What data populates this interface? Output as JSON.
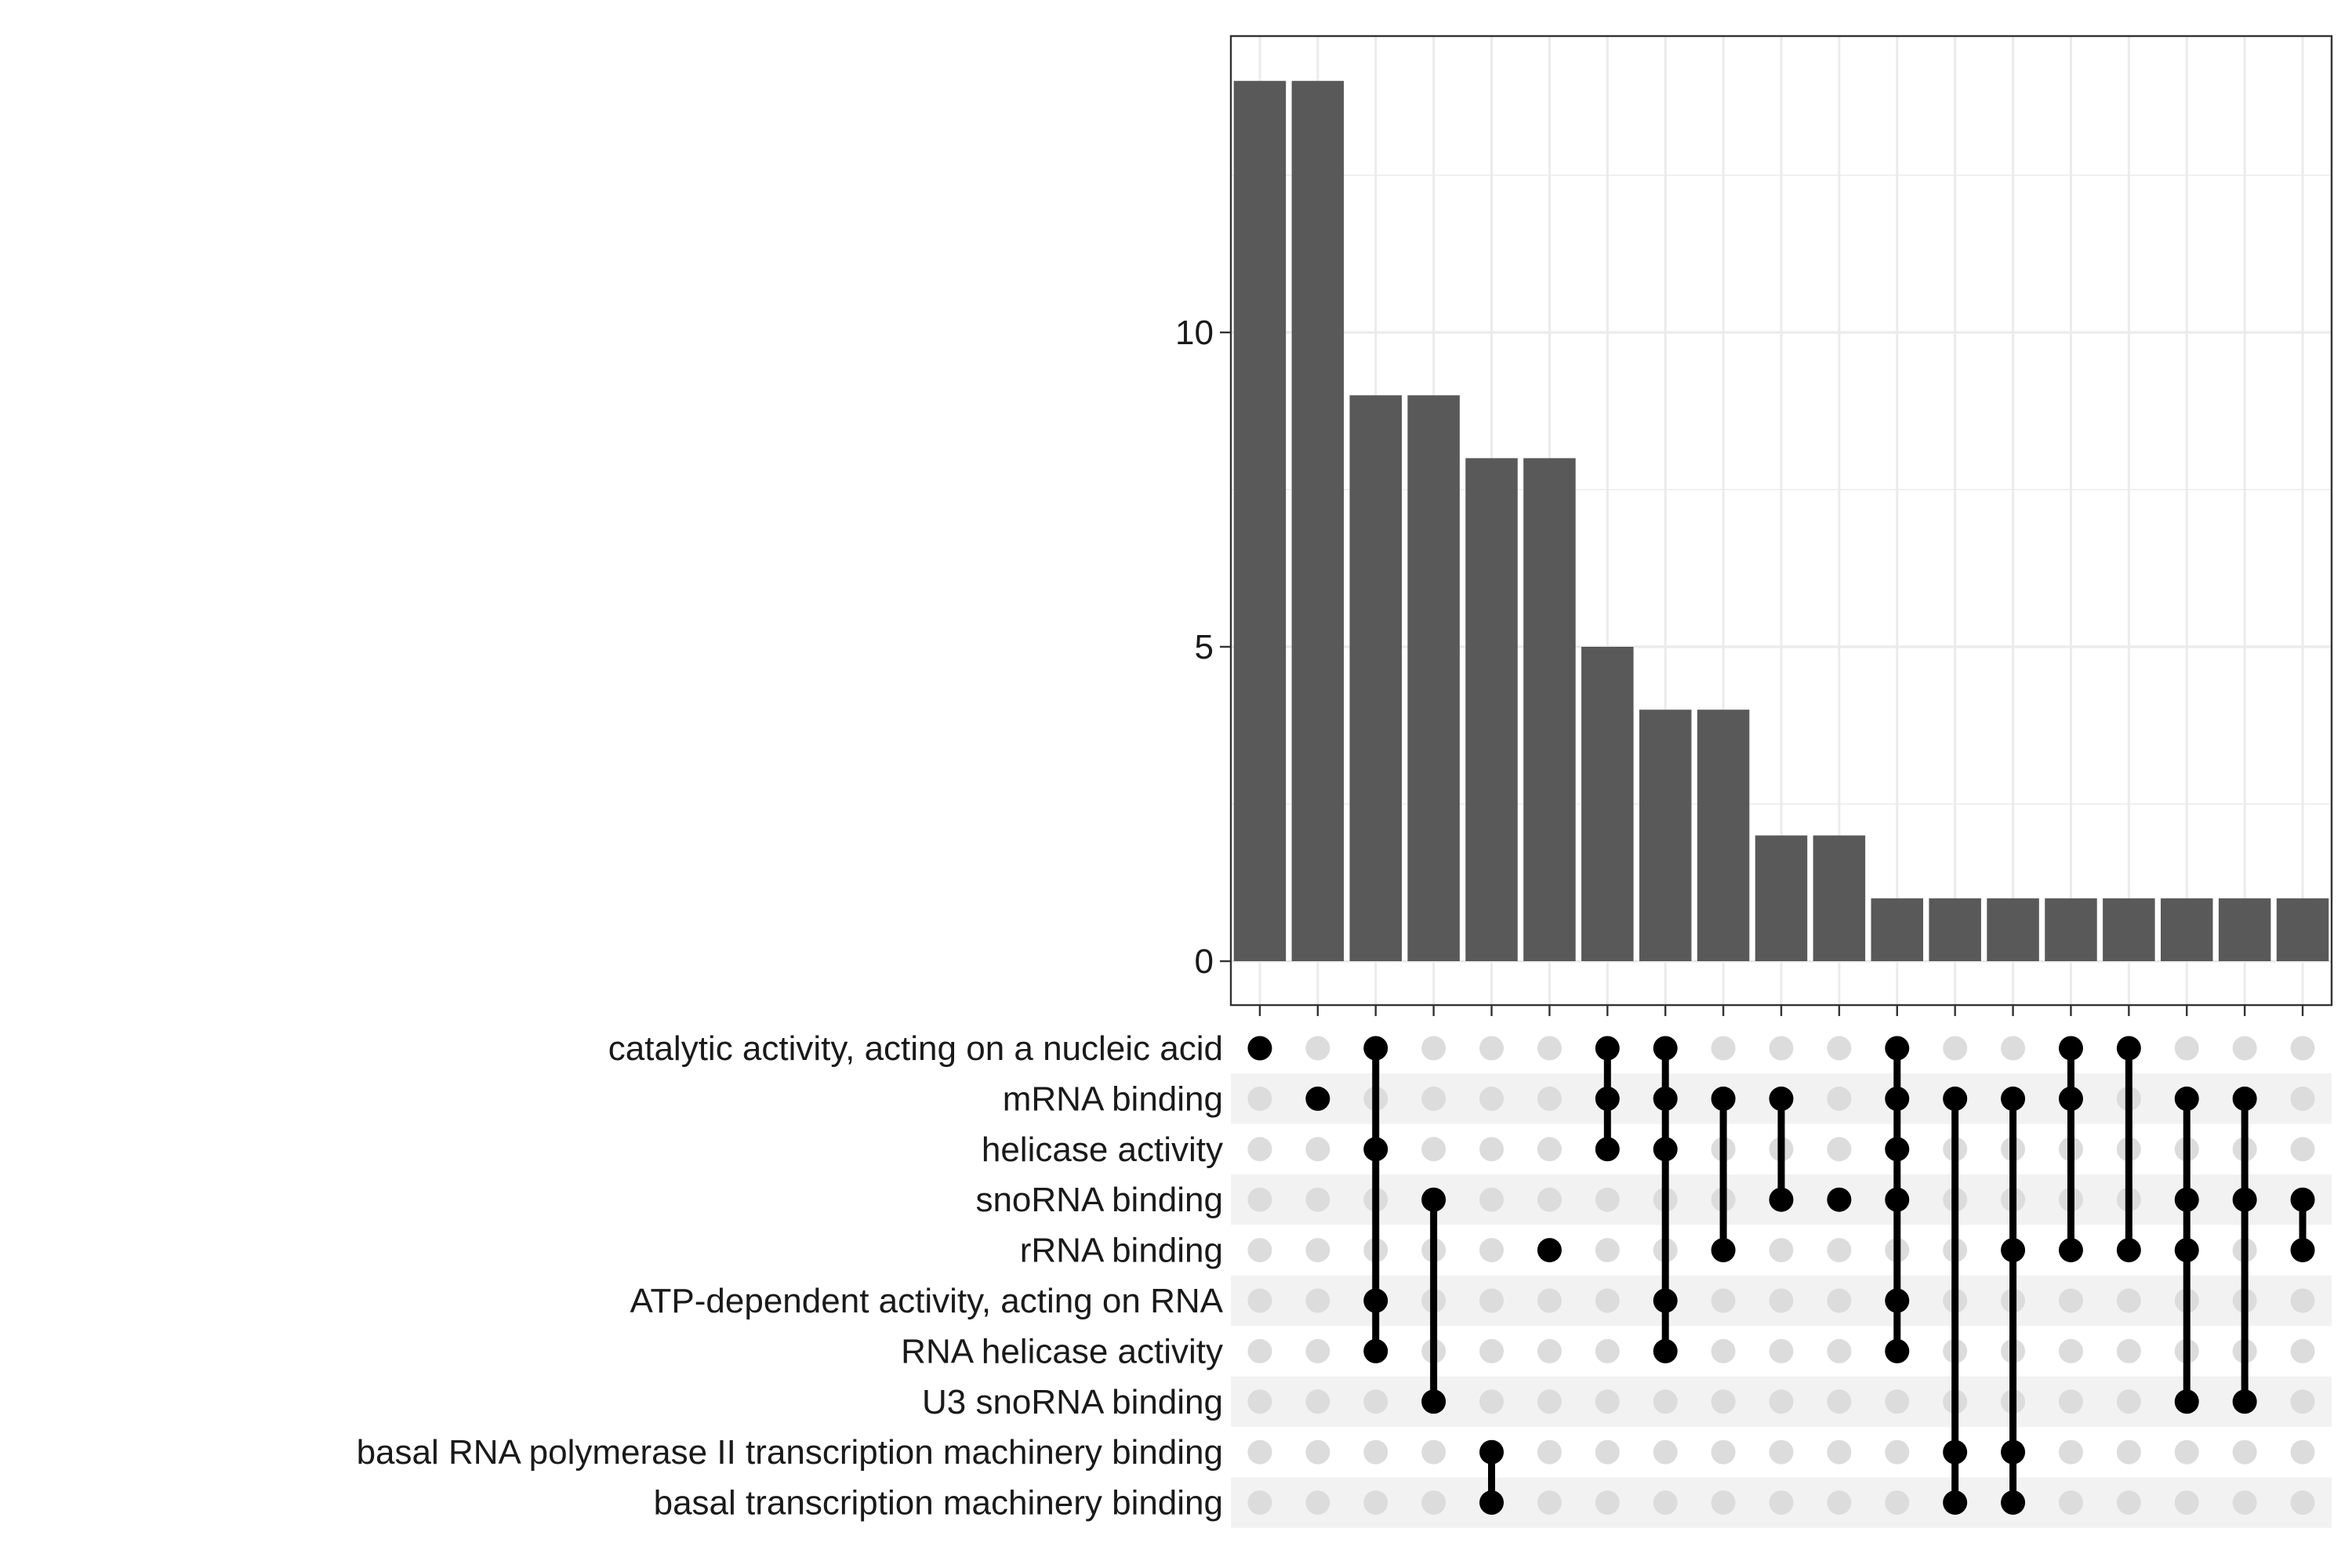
{
  "chart_data": {
    "type": "upset",
    "title": "",
    "ylabel": "",
    "ylim": [
      0,
      14.5
    ],
    "yticks": [
      0,
      5,
      10
    ],
    "grid": true,
    "colors": {
      "bar": "#595959",
      "dot_active": "#000000",
      "dot_inactive": "#dcdcdc",
      "stripe": "#f2f2f2",
      "gridline": "#ebebeb",
      "panel_border": "#333333"
    },
    "sets": [
      "catalytic activity, acting on a nucleic acid",
      "mRNA binding",
      "helicase activity",
      "snoRNA binding",
      "rRNA binding",
      "ATP-dependent activity, acting on RNA",
      "RNA helicase activity",
      "U3 snoRNA binding",
      "basal RNA polymerase II transcription machinery binding",
      "basal transcription machinery binding"
    ],
    "intersections": [
      {
        "value": 14,
        "members": [
          0
        ]
      },
      {
        "value": 14,
        "members": [
          1
        ]
      },
      {
        "value": 9,
        "members": [
          0,
          2,
          5,
          6
        ]
      },
      {
        "value": 9,
        "members": [
          3,
          7
        ]
      },
      {
        "value": 8,
        "members": [
          8,
          9
        ]
      },
      {
        "value": 8,
        "members": [
          4
        ]
      },
      {
        "value": 5,
        "members": [
          0,
          1,
          2
        ]
      },
      {
        "value": 4,
        "members": [
          0,
          1,
          2,
          5,
          6
        ]
      },
      {
        "value": 4,
        "members": [
          1,
          4
        ]
      },
      {
        "value": 2,
        "members": [
          1,
          3
        ]
      },
      {
        "value": 2,
        "members": [
          3
        ]
      },
      {
        "value": 1,
        "members": [
          0,
          1,
          2,
          3,
          5,
          6
        ]
      },
      {
        "value": 1,
        "members": [
          1,
          8,
          9
        ]
      },
      {
        "value": 1,
        "members": [
          1,
          4,
          8,
          9
        ]
      },
      {
        "value": 1,
        "members": [
          0,
          1,
          4
        ]
      },
      {
        "value": 1,
        "members": [
          0,
          4
        ]
      },
      {
        "value": 1,
        "members": [
          1,
          3,
          4,
          7
        ]
      },
      {
        "value": 1,
        "members": [
          1,
          3,
          7
        ]
      },
      {
        "value": 1,
        "members": [
          3,
          4
        ]
      }
    ]
  }
}
